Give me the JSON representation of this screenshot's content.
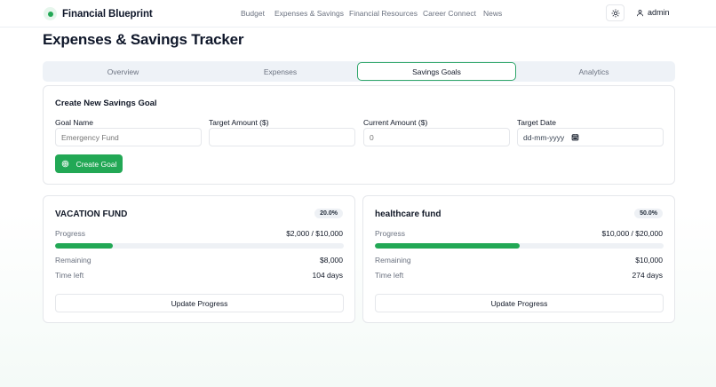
{
  "header": {
    "brand": "Financial Blueprint",
    "nav": [
      "Budget",
      "Expenses & Savings",
      "Financial Resources",
      "Career Connect",
      "News"
    ],
    "theme_icon": "sun-icon",
    "user": "admin",
    "user_icon": "user-icon"
  },
  "page": {
    "title": "Expenses & Savings Tracker"
  },
  "tabs": [
    {
      "label": "Overview",
      "active": false
    },
    {
      "label": "Expenses",
      "active": false
    },
    {
      "label": "Savings Goals",
      "active": true
    },
    {
      "label": "Analytics",
      "active": false
    }
  ],
  "create_form": {
    "title": "Create New Savings Goal",
    "fields": [
      {
        "label": "Goal Name",
        "value": "",
        "placeholder": "Emergency Fund"
      },
      {
        "label": "Target Amount ($)",
        "value": "",
        "placeholder": ""
      },
      {
        "label": "Current Amount ($)",
        "value": "",
        "placeholder": "0"
      },
      {
        "label": "Target Date",
        "value": "",
        "placeholder": "dd-mm-yyyy"
      }
    ],
    "submit_label": "Create Goal"
  },
  "goals": [
    {
      "name": "VACATION FUND",
      "percent_label": "20.0%",
      "progress_fraction": 0.2,
      "progress_label": "Progress",
      "progress_value": "$2,000 / $10,000",
      "remaining_label": "Remaining",
      "remaining_value": "$8,000",
      "time_label": "Time left",
      "time_value": "104 days",
      "button_label": "Update Progress"
    },
    {
      "name": "healthcare fund",
      "percent_label": "50.0%",
      "progress_fraction": 0.5,
      "progress_label": "Progress",
      "progress_value": "$10,000 / $20,000",
      "remaining_label": "Remaining",
      "remaining_value": "$10,000",
      "time_label": "Time left",
      "time_value": "274 days",
      "button_label": "Update Progress"
    }
  ],
  "colors": {
    "accent": "#22a855",
    "tab_active_border": "#2fa66a",
    "muted_text": "#6b7280"
  }
}
